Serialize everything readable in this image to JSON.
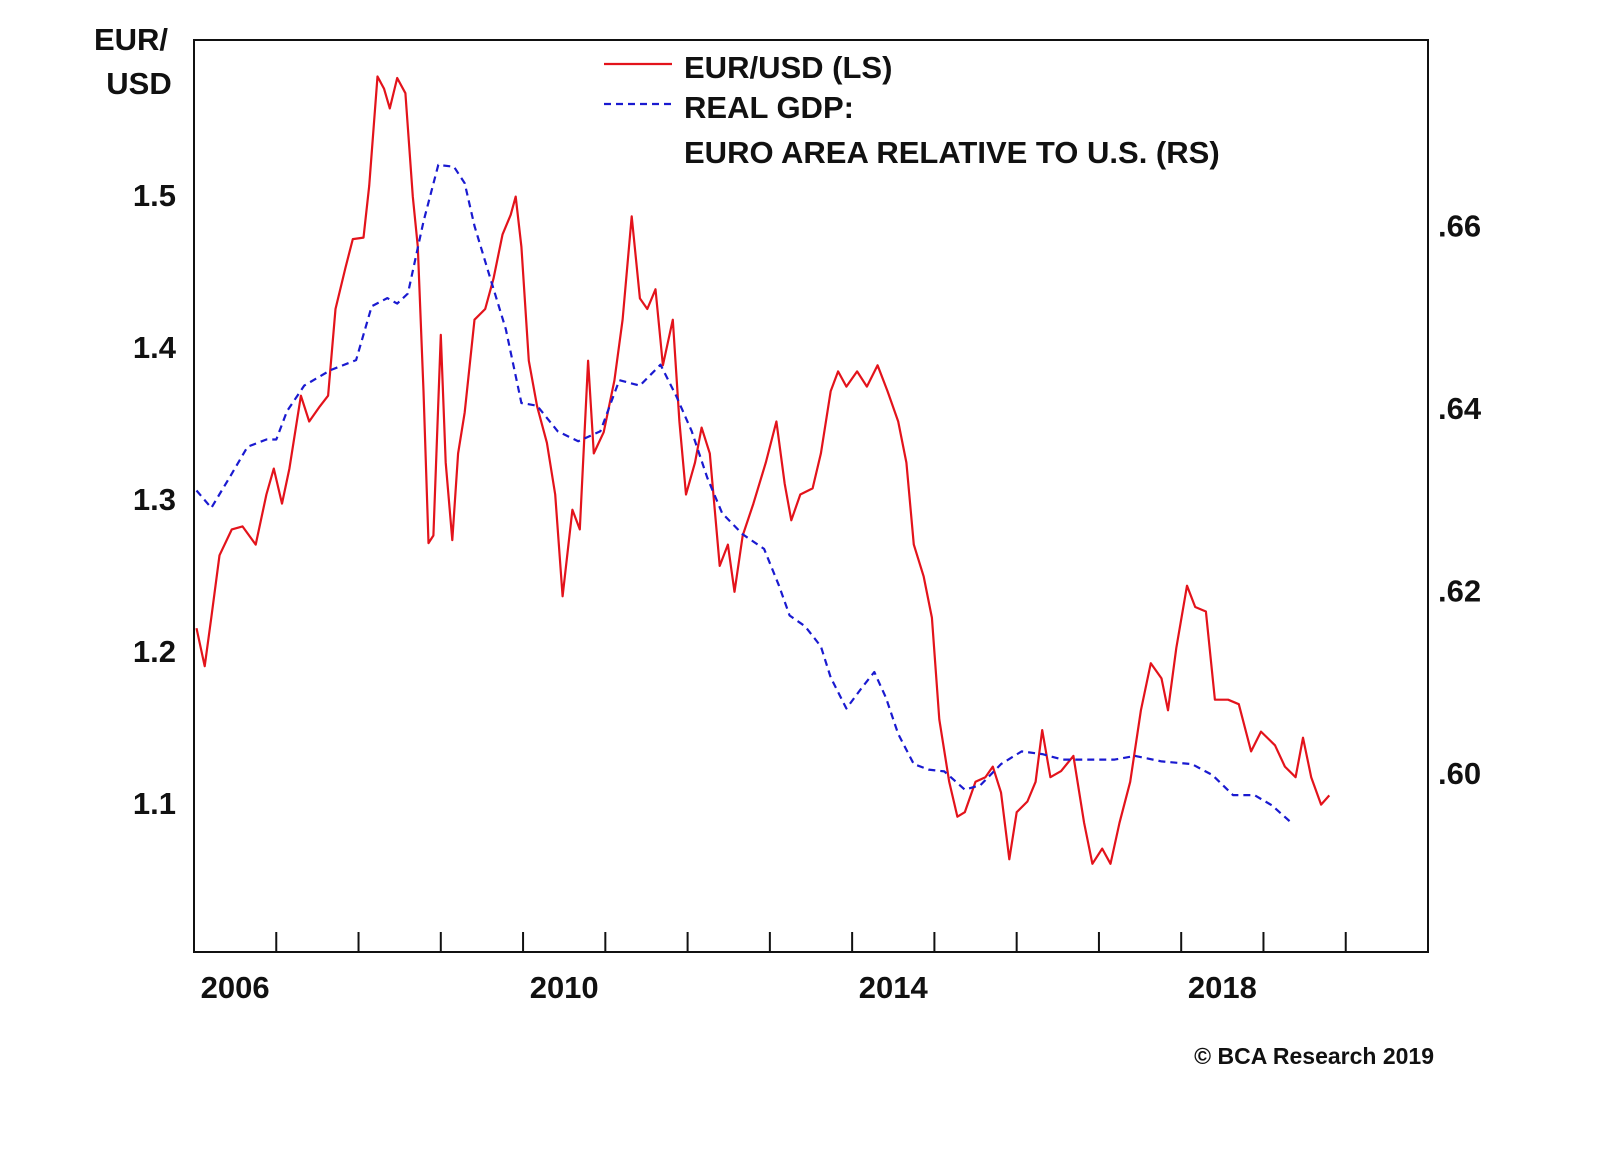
{
  "chart_data": {
    "type": "line",
    "y_label": [
      "EUR/",
      "USD"
    ],
    "source": "© BCA Research 2019",
    "xlim": [
      2006,
      2021
    ],
    "xticks": [
      2007,
      2008,
      2009,
      2010,
      2011,
      2012,
      2013,
      2014,
      2015,
      2016,
      2017,
      2018,
      2019,
      2020
    ],
    "xticklabels": [
      {
        "value": 2006,
        "label": "2006"
      },
      {
        "value": 2010,
        "label": "2010"
      },
      {
        "value": 2014,
        "label": "2014"
      },
      {
        "value": 2018,
        "label": "2018"
      }
    ],
    "ylim": [
      1.0,
      1.6
    ],
    "yticks": [
      1.1,
      1.2,
      1.3,
      1.4,
      1.5
    ],
    "y2lim": [
      0.58,
      0.68
    ],
    "y2ticks": [
      {
        "value": 0.6,
        "label": ".60"
      },
      {
        "value": 0.62,
        "label": ".62"
      },
      {
        "value": 0.64,
        "label": ".64"
      },
      {
        "value": 0.66,
        "label": ".66"
      }
    ],
    "series": [
      {
        "name": [
          "EUR/USD (LS)"
        ],
        "color": "#e3131b",
        "dashed": false,
        "x": [
          2006.03,
          2006.13,
          2006.21,
          2006.31,
          2006.46,
          2006.59,
          2006.75,
          2006.88,
          2006.97,
          2007.07,
          2007.16,
          2007.3,
          2007.4,
          2007.53,
          2007.63,
          2007.72,
          2007.84,
          2007.93,
          2008.06,
          2008.13,
          2008.23,
          2008.31,
          2008.38,
          2008.47,
          2008.57,
          2008.66,
          2008.72,
          2008.79,
          2008.85,
          2008.91,
          2009.0,
          2009.06,
          2009.14,
          2009.21,
          2009.29,
          2009.41,
          2009.54,
          2009.64,
          2009.75,
          2009.85,
          2009.91,
          2009.98,
          2010.07,
          2010.17,
          2010.29,
          2010.39,
          2010.48,
          2010.6,
          2010.69,
          2010.79,
          2010.86,
          2010.98,
          2011.11,
          2011.21,
          2011.32,
          2011.42,
          2011.51,
          2011.61,
          2011.7,
          2011.82,
          2011.9,
          2011.98,
          2012.09,
          2012.17,
          2012.27,
          2012.39,
          2012.49,
          2012.57,
          2012.67,
          2012.8,
          2012.95,
          2013.08,
          2013.18,
          2013.26,
          2013.37,
          2013.52,
          2013.62,
          2013.74,
          2013.83,
          2013.93,
          2014.06,
          2014.18,
          2014.31,
          2014.43,
          2014.56,
          2014.66,
          2014.75,
          2014.87,
          2014.97,
          2015.06,
          2015.18,
          2015.28,
          2015.37,
          2015.5,
          2015.62,
          2015.71,
          2015.81,
          2015.91,
          2016.0,
          2016.13,
          2016.23,
          2016.31,
          2016.41,
          2016.54,
          2016.69,
          2016.82,
          2016.92,
          2017.04,
          2017.14,
          2017.25,
          2017.38,
          2017.51,
          2017.63,
          2017.76,
          2017.84,
          2017.94,
          2018.07,
          2018.17,
          2018.3,
          2018.41,
          2018.57,
          2018.7,
          2018.85,
          2018.97,
          2019.14,
          2019.26,
          2019.39,
          2019.48,
          2019.58,
          2019.7,
          2019.8
        ],
        "values": [
          1.213,
          1.188,
          1.22,
          1.261,
          1.278,
          1.28,
          1.268,
          1.301,
          1.318,
          1.295,
          1.318,
          1.366,
          1.349,
          1.359,
          1.366,
          1.423,
          1.45,
          1.469,
          1.47,
          1.504,
          1.576,
          1.568,
          1.555,
          1.575,
          1.565,
          1.497,
          1.464,
          1.369,
          1.269,
          1.274,
          1.406,
          1.322,
          1.271,
          1.328,
          1.355,
          1.416,
          1.423,
          1.443,
          1.472,
          1.485,
          1.497,
          1.464,
          1.389,
          1.359,
          1.335,
          1.301,
          1.234,
          1.291,
          1.278,
          1.389,
          1.328,
          1.342,
          1.376,
          1.416,
          1.484,
          1.43,
          1.423,
          1.436,
          1.386,
          1.416,
          1.349,
          1.301,
          1.322,
          1.345,
          1.328,
          1.254,
          1.268,
          1.237,
          1.274,
          1.295,
          1.322,
          1.349,
          1.308,
          1.284,
          1.301,
          1.305,
          1.328,
          1.369,
          1.382,
          1.372,
          1.382,
          1.372,
          1.386,
          1.369,
          1.349,
          1.322,
          1.268,
          1.247,
          1.22,
          1.153,
          1.112,
          1.089,
          1.092,
          1.112,
          1.115,
          1.122,
          1.105,
          1.061,
          1.092,
          1.099,
          1.112,
          1.146,
          1.115,
          1.119,
          1.129,
          1.085,
          1.058,
          1.068,
          1.058,
          1.085,
          1.112,
          1.159,
          1.19,
          1.18,
          1.159,
          1.2,
          1.241,
          1.227,
          1.224,
          1.166,
          1.166,
          1.163,
          1.132,
          1.145,
          1.136,
          1.122,
          1.115,
          1.141,
          1.115,
          1.097,
          1.103
        ]
      },
      {
        "name": [
          "REAL GDP:",
          "EURO AREA RELATIVE TO U.S. (RS)"
        ],
        "color": "#1a1ad0",
        "dashed": true,
        "axis": "y2",
        "x": [
          2006.03,
          2006.21,
          2006.43,
          2006.65,
          2006.88,
          2007.0,
          2007.13,
          2007.34,
          2007.66,
          2007.97,
          2008.16,
          2008.35,
          2008.47,
          2008.6,
          2008.79,
          2008.97,
          2009.16,
          2009.29,
          2009.41,
          2009.6,
          2009.79,
          2009.98,
          2010.17,
          2010.42,
          2010.67,
          2010.94,
          2011.17,
          2011.42,
          2011.67,
          2011.86,
          2012.05,
          2012.24,
          2012.42,
          2012.67,
          2012.93,
          2013.11,
          2013.24,
          2013.43,
          2013.62,
          2013.74,
          2013.93,
          2014.12,
          2014.27,
          2014.41,
          2014.56,
          2014.75,
          2014.93,
          2015.12,
          2015.37,
          2015.56,
          2015.81,
          2016.06,
          2016.31,
          2016.56,
          2016.82,
          2017.19,
          2017.44,
          2017.76,
          2018.13,
          2018.38,
          2018.63,
          2018.89,
          2019.1,
          2019.36
        ],
        "values": [
          0.6306,
          0.6287,
          0.632,
          0.6354,
          0.6362,
          0.6362,
          0.6393,
          0.6421,
          0.6438,
          0.6449,
          0.6508,
          0.6517,
          0.6511,
          0.6522,
          0.6601,
          0.6663,
          0.6661,
          0.6643,
          0.6596,
          0.6539,
          0.6483,
          0.6402,
          0.6399,
          0.6371,
          0.636,
          0.6371,
          0.6427,
          0.6421,
          0.6444,
          0.641,
          0.6371,
          0.632,
          0.6281,
          0.6258,
          0.6242,
          0.6202,
          0.6169,
          0.6157,
          0.6135,
          0.6101,
          0.6067,
          0.609,
          0.6107,
          0.6079,
          0.6039,
          0.6006,
          0.6,
          0.5998,
          0.5978,
          0.5983,
          0.6006,
          0.602,
          0.6017,
          0.6011,
          0.6011,
          0.6011,
          0.6015,
          0.6009,
          0.6006,
          0.5994,
          0.5972,
          0.5972,
          0.5961,
          0.594
        ]
      }
    ]
  }
}
